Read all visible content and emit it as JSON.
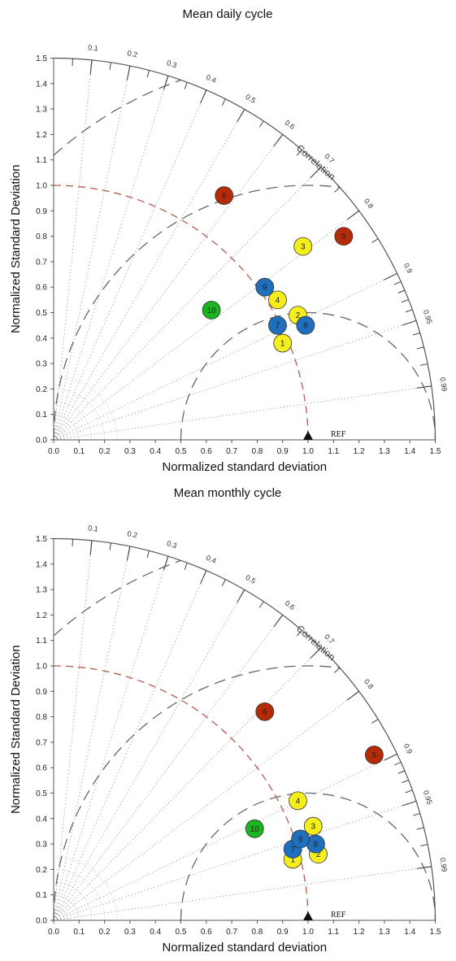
{
  "chart_data": [
    {
      "type": "taylor-diagram",
      "title": "Mean daily cycle",
      "xlabel": "Normalized standard deviation",
      "ylabel": "Normalized Standard Deviation",
      "correlation_label": "Correlation",
      "ref_label": "REF",
      "xlim": [
        0,
        1.5
      ],
      "ylim": [
        0,
        1.5
      ],
      "ticks": [
        "0.0",
        "0.1",
        "0.2",
        "0.3",
        "0.4",
        "0.5",
        "0.6",
        "0.7",
        "0.8",
        "0.9",
        "1.0",
        "1.1",
        "1.2",
        "1.3",
        "1.4",
        "1.5"
      ],
      "correlation_ticks": [
        "0.1",
        "0.2",
        "0.3",
        "0.4",
        "0.5",
        "0.6",
        "0.7",
        "0.8",
        "0.9",
        "0.95",
        "0.99"
      ],
      "points": [
        {
          "label": "1",
          "x": 0.9,
          "y": 0.38,
          "color": "#f5ee1c"
        },
        {
          "label": "2",
          "x": 0.96,
          "y": 0.49,
          "color": "#f5ee1c"
        },
        {
          "label": "3",
          "x": 0.98,
          "y": 0.76,
          "color": "#f5ee1c"
        },
        {
          "label": "4",
          "x": 0.88,
          "y": 0.55,
          "color": "#f5ee1c"
        },
        {
          "label": "5",
          "x": 1.14,
          "y": 0.8,
          "color": "#b52a07"
        },
        {
          "label": "6",
          "x": 0.67,
          "y": 0.96,
          "color": "#b52a07"
        },
        {
          "label": "7",
          "x": 0.88,
          "y": 0.45,
          "color": "#1f6fbf"
        },
        {
          "label": "8",
          "x": 0.99,
          "y": 0.45,
          "color": "#1f6fbf"
        },
        {
          "label": "9",
          "x": 0.83,
          "y": 0.6,
          "color": "#1f6fbf"
        },
        {
          "label": "10",
          "x": 0.62,
          "y": 0.51,
          "color": "#19b41e"
        }
      ]
    },
    {
      "type": "taylor-diagram",
      "title": "Mean monthly cycle",
      "xlabel": "Normalized standard deviation",
      "ylabel": "Normalized Standard Deviation",
      "correlation_label": "Correlation",
      "ref_label": "REF",
      "xlim": [
        0,
        1.5
      ],
      "ylim": [
        0,
        1.5
      ],
      "ticks": [
        "0.0",
        "0.1",
        "0.2",
        "0.3",
        "0.4",
        "0.5",
        "0.6",
        "0.7",
        "0.8",
        "0.9",
        "1.0",
        "1.1",
        "1.2",
        "1.3",
        "1.4",
        "1.5"
      ],
      "correlation_ticks": [
        "0.1",
        "0.2",
        "0.3",
        "0.4",
        "0.5",
        "0.6",
        "0.7",
        "0.8",
        "0.9",
        "0.95",
        "0.99"
      ],
      "points": [
        {
          "label": "1",
          "x": 0.94,
          "y": 0.24,
          "color": "#f5ee1c"
        },
        {
          "label": "2",
          "x": 1.04,
          "y": 0.26,
          "color": "#f5ee1c"
        },
        {
          "label": "3",
          "x": 1.02,
          "y": 0.37,
          "color": "#f5ee1c"
        },
        {
          "label": "4",
          "x": 0.96,
          "y": 0.47,
          "color": "#f5ee1c"
        },
        {
          "label": "5",
          "x": 1.26,
          "y": 0.65,
          "color": "#b52a07"
        },
        {
          "label": "6",
          "x": 0.83,
          "y": 0.82,
          "color": "#b52a07"
        },
        {
          "label": "7",
          "x": 0.94,
          "y": 0.28,
          "color": "#1f6fbf"
        },
        {
          "label": "8",
          "x": 1.03,
          "y": 0.3,
          "color": "#1f6fbf"
        },
        {
          "label": "9",
          "x": 0.97,
          "y": 0.32,
          "color": "#1f6fbf"
        },
        {
          "label": "10",
          "x": 0.79,
          "y": 0.36,
          "color": "#19b41e"
        }
      ]
    }
  ]
}
